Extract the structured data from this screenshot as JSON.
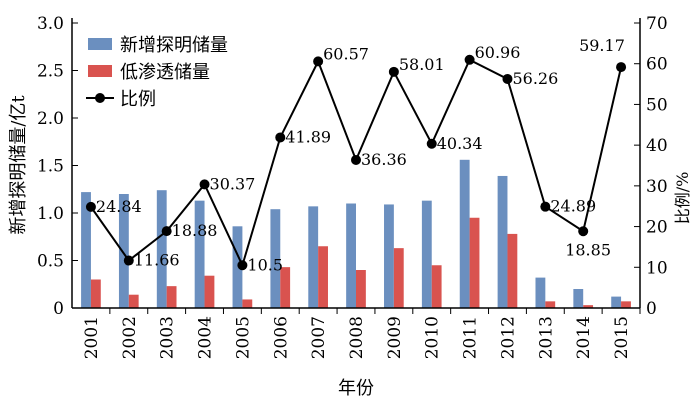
{
  "chart_data": {
    "type": "bar+line",
    "categories": [
      "2001",
      "2002",
      "2003",
      "2004",
      "2005",
      "2006",
      "2007",
      "2008",
      "2009",
      "2010",
      "2011",
      "2012",
      "2013",
      "2014",
      "2015"
    ],
    "series": [
      {
        "name": "新增探明储量",
        "type": "bar",
        "axis": "left",
        "color": "#6b8fbf",
        "values": [
          1.22,
          1.2,
          1.24,
          1.13,
          0.86,
          1.04,
          1.07,
          1.1,
          1.09,
          1.13,
          1.56,
          1.39,
          0.32,
          0.2,
          0.12
        ]
      },
      {
        "name": "低渗透储量",
        "type": "bar",
        "axis": "left",
        "color": "#d9534f",
        "values": [
          0.3,
          0.14,
          0.23,
          0.34,
          0.09,
          0.43,
          0.65,
          0.4,
          0.63,
          0.45,
          0.95,
          0.78,
          0.07,
          0.03,
          0.07
        ]
      },
      {
        "name": "比例",
        "type": "line",
        "axis": "right",
        "color": "#000000",
        "values": [
          24.84,
          11.66,
          18.88,
          30.37,
          10.5,
          41.89,
          60.57,
          36.36,
          58.01,
          40.34,
          60.96,
          56.26,
          24.89,
          18.85,
          59.17
        ]
      }
    ],
    "data_labels": [
      "24.84",
      "11.66",
      "18.88",
      "30.37",
      "10.5",
      "41.89",
      "60.57",
      "36.36",
      "58.01",
      "40.34",
      "60.96",
      "56.26",
      "24.89",
      "18.85",
      "59.17"
    ],
    "xlabel": "年份",
    "ylabel": "新增探明储量/亿t",
    "y2label": "比例/%",
    "ylim": [
      0,
      3.0
    ],
    "y2lim": [
      0,
      70
    ],
    "yticks": [
      "0",
      "0.5",
      "1.0",
      "1.5",
      "2.0",
      "2.5",
      "3.0"
    ],
    "y2ticks": [
      "0",
      "10",
      "20",
      "30",
      "40",
      "50",
      "60",
      "70"
    ],
    "legend": "top-left",
    "grid": false
  }
}
